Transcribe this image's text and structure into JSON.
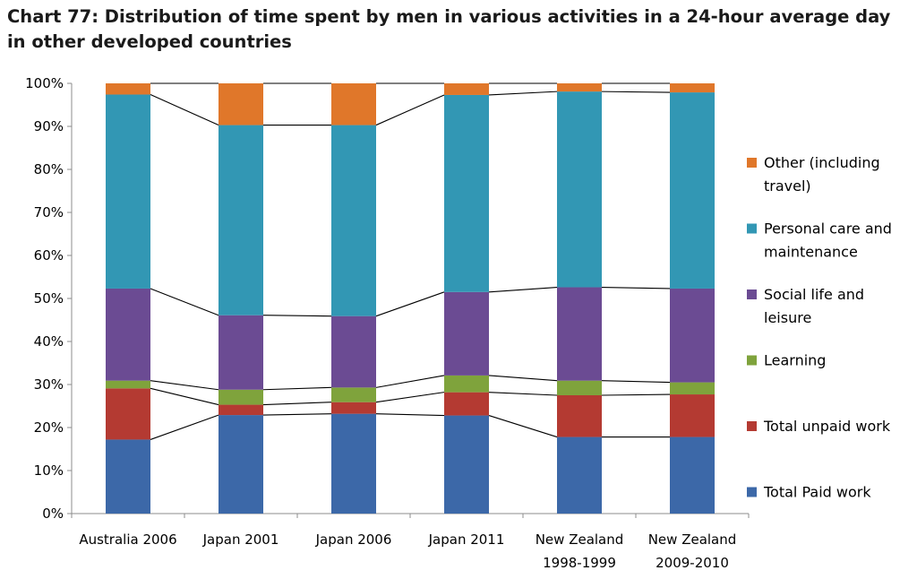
{
  "title": "Chart 77: Distribution of time spent by men in various activities in a 24-hour average day in other developed countries",
  "colors": {
    "paid": "#3c68a8",
    "unpaid": "#b43a32",
    "learning": "#7fa33c",
    "social": "#6b4b93",
    "personal": "#3297b4",
    "other": "#e0772a"
  },
  "chart_data": {
    "type": "bar",
    "stacked": true,
    "percent": true,
    "categories": [
      [
        "Australia 2006"
      ],
      [
        "Japan 2001"
      ],
      [
        "Japan 2006"
      ],
      [
        "Japan 2011"
      ],
      [
        "New Zealand",
        "1998-1999"
      ],
      [
        "New Zealand",
        "2009-2010"
      ]
    ],
    "ylim": [
      0,
      100
    ],
    "yticks": [
      "0%",
      "10%",
      "20%",
      "30%",
      "40%",
      "50%",
      "60%",
      "70%",
      "80%",
      "90%",
      "100%"
    ],
    "series_lines": true,
    "series": [
      {
        "name": "Total Paid work",
        "color_key": "paid",
        "values": [
          17.2,
          22.9,
          23.2,
          22.8,
          17.8,
          17.8
        ]
      },
      {
        "name": "Total unpaid work",
        "color_key": "unpaid",
        "values": [
          11.9,
          2.4,
          2.7,
          5.4,
          9.7,
          9.9
        ]
      },
      {
        "name": "Learning",
        "color_key": "learning",
        "values": [
          1.8,
          3.5,
          3.4,
          3.9,
          3.4,
          2.8
        ]
      },
      {
        "name": "Social life and leisure",
        "color_key": "social",
        "values": [
          21.4,
          17.3,
          16.6,
          19.4,
          21.7,
          21.8
        ]
      },
      {
        "name": "Personal care and maintenance",
        "color_key": "personal",
        "values": [
          45.1,
          44.2,
          44.4,
          45.8,
          45.5,
          45.6
        ]
      },
      {
        "name": "Other (including travel)",
        "color_key": "other",
        "values": [
          2.6,
          9.7,
          9.7,
          2.7,
          1.9,
          2.1
        ]
      }
    ],
    "legend": {
      "position": "right",
      "order": [
        [
          "Other (including",
          "travel)"
        ],
        [
          "Personal care and",
          "maintenance"
        ],
        [
          "Social life and",
          "leisure"
        ],
        [
          "Learning"
        ],
        [
          "Total unpaid work"
        ],
        [
          "Total Paid work"
        ]
      ]
    }
  }
}
